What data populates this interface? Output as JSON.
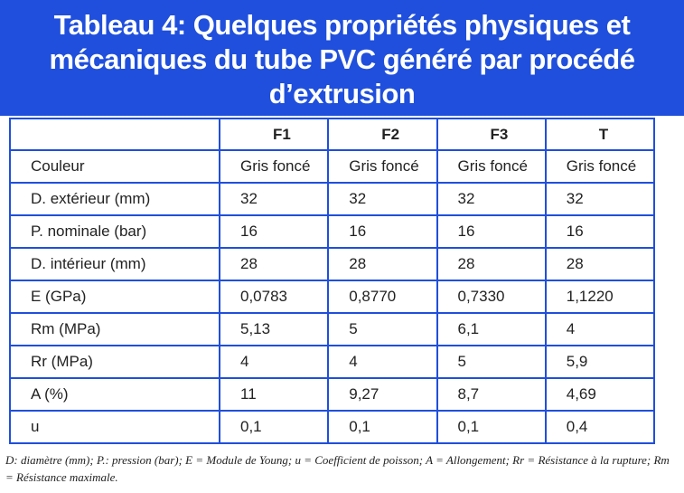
{
  "title": "Tableau 4: Quelques propriétés physiques et mécaniques du tube PVC généré par procédé d’extrusion",
  "table": {
    "header": [
      "F1",
      "F2",
      "F3",
      "T"
    ],
    "rows": [
      [
        "Couleur",
        "Gris foncé",
        "Gris foncé",
        "Gris foncé",
        "Gris foncé"
      ],
      [
        "D. extérieur (mm)",
        "32",
        "32",
        "32",
        "32"
      ],
      [
        "P. nominale (bar)",
        "16",
        "16",
        "16",
        "16"
      ],
      [
        "D. intérieur (mm)",
        "28",
        "28",
        "28",
        "28"
      ],
      [
        "E (GPa)",
        "0,0783",
        "0,8770",
        "0,7330",
        "1,1220"
      ],
      [
        "Rm (MPa)",
        "5,13",
        "5",
        "6,1",
        "4"
      ],
      [
        "Rr (MPa)",
        "4",
        "4",
        "5",
        "5,9"
      ],
      [
        "A (%)",
        "11",
        "9,27",
        "8,7",
        "4,69"
      ],
      [
        "u",
        "0,1",
        "0,1",
        "0,1",
        "0,4"
      ]
    ]
  },
  "footnote": "D: diamètre (mm); P.: pression (bar); E = Module de Young; u = Coefficient de poisson; A = Allongement; Rr = Résistance à la rupture; Rm = Résistance maximale."
}
